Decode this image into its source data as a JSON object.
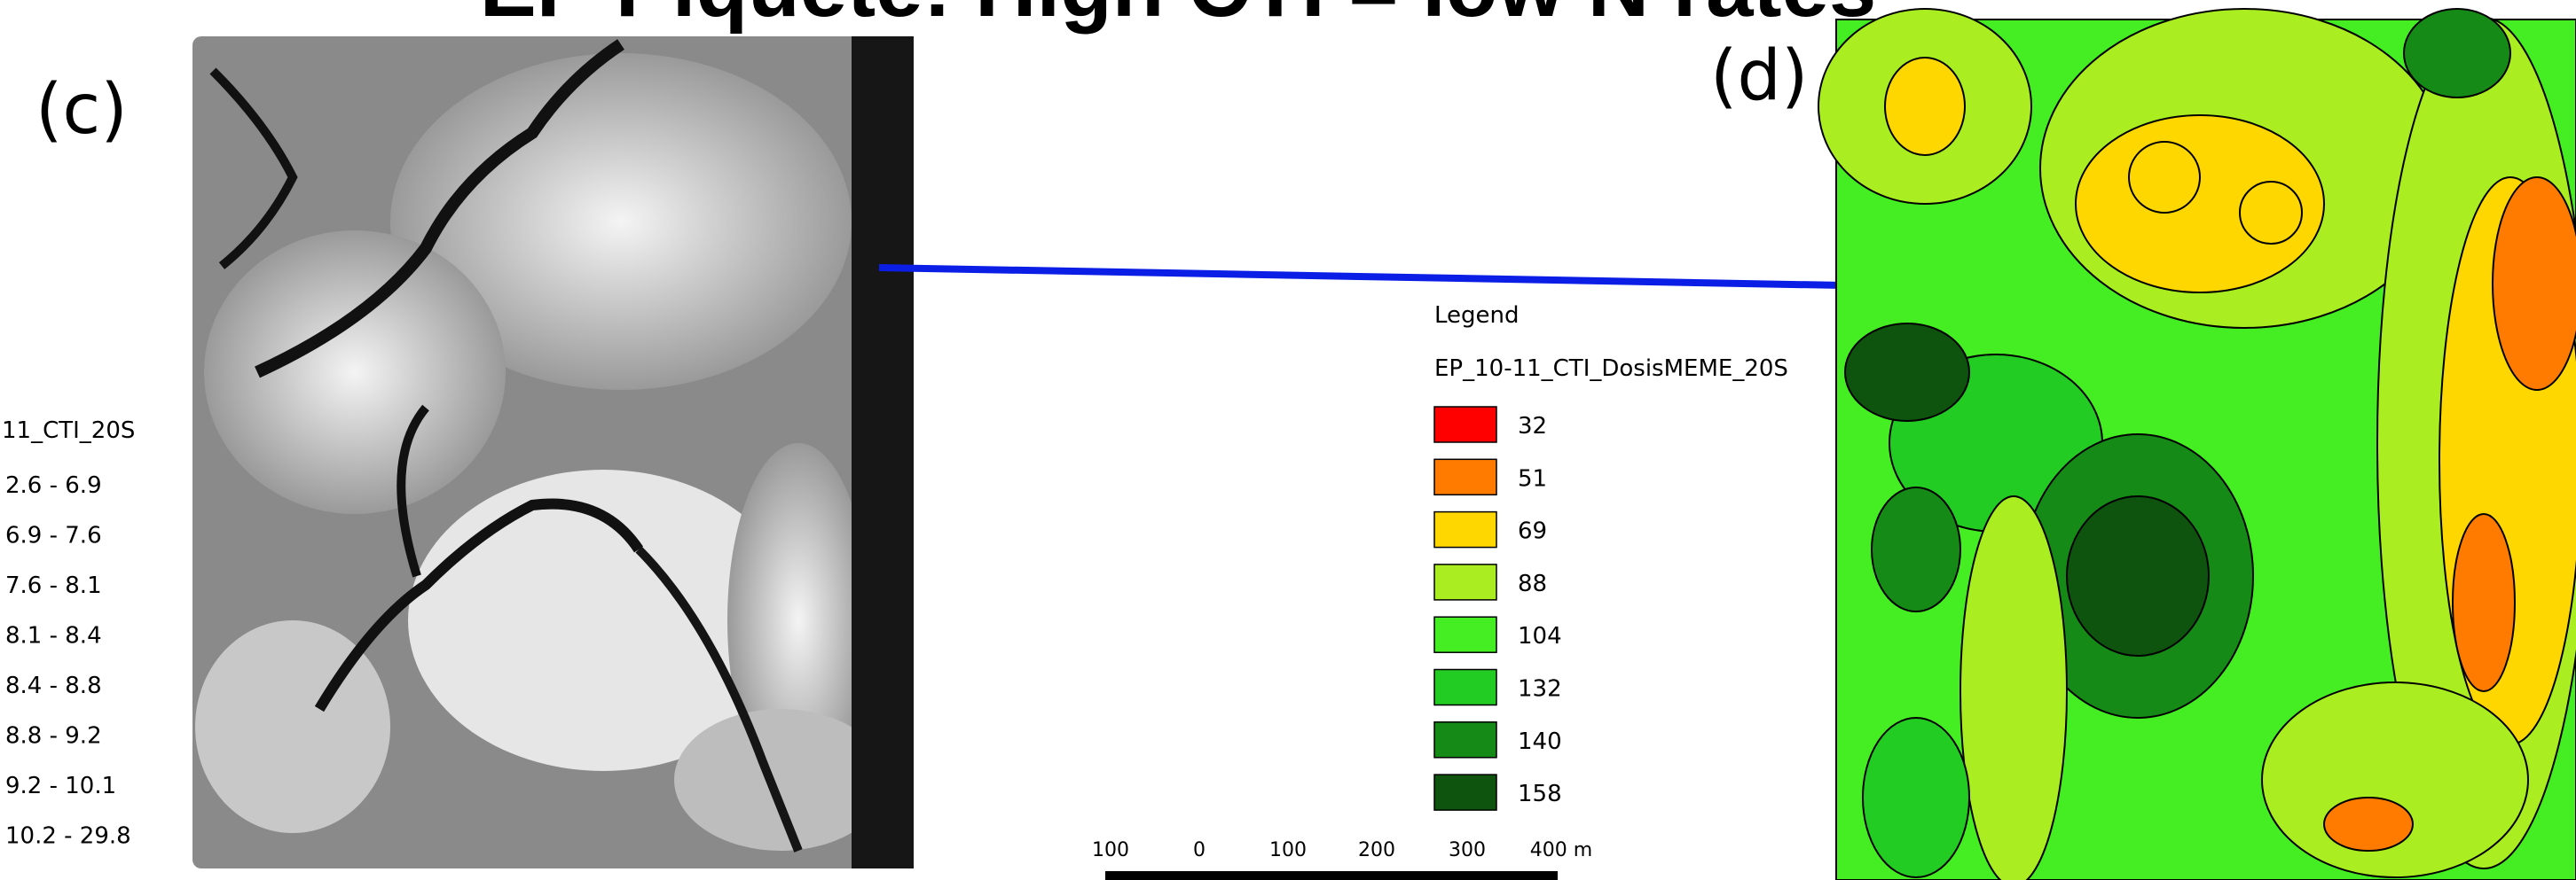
{
  "title": "EP Piquete: High CTI = low N rates",
  "panel_c": {
    "label": "(c)",
    "legend": {
      "layer": "11_CTI_20S",
      "classes": [
        "2.6 - 6.9",
        "6.9 - 7.6",
        "7.6 - 8.1",
        "8.1 - 8.4",
        "8.4 - 8.8",
        "8.8 - 9.2",
        "9.2 - 10.1",
        "10.2 - 29.8"
      ]
    }
  },
  "panel_d": {
    "label": "(d)",
    "legend": {
      "heading": "Legend",
      "layer": "EP_10-11_CTI_DosisMEME_20S",
      "items": [
        {
          "label": "32",
          "color": "#ff0000"
        },
        {
          "label": "51",
          "color": "#ff7b00"
        },
        {
          "label": "69",
          "color": "#ffd700"
        },
        {
          "label": "88",
          "color": "#aaee22"
        },
        {
          "label": "104",
          "color": "#44ee22"
        },
        {
          "label": "132",
          "color": "#22cc22"
        },
        {
          "label": "140",
          "color": "#168a16"
        },
        {
          "label": "158",
          "color": "#0e540e"
        }
      ]
    },
    "scale_labels": [
      "100",
      "0",
      "100",
      "200",
      "300",
      "400 m"
    ]
  }
}
